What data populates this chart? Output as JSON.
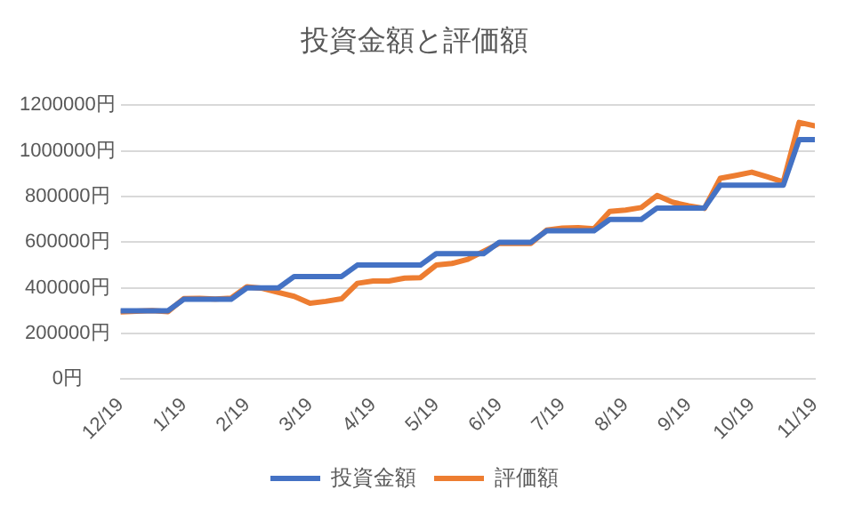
{
  "chart_data": {
    "type": "line",
    "title": "投資金額と評価額",
    "categories": [
      "12/19",
      null,
      null,
      null,
      "1/19",
      null,
      null,
      null,
      "2/19",
      null,
      null,
      null,
      "3/19",
      null,
      null,
      null,
      "4/19",
      null,
      null,
      null,
      "5/19",
      null,
      null,
      null,
      "6/19",
      null,
      null,
      null,
      "7/19",
      null,
      null,
      null,
      "8/19",
      null,
      null,
      null,
      "9/19",
      null,
      null,
      null,
      "10/19",
      null,
      null,
      null,
      "11/19"
    ],
    "series": [
      {
        "name": "投資金額",
        "color": "#4472c4",
        "values": [
          300000,
          300000,
          300000,
          300000,
          350000,
          350000,
          350000,
          350000,
          400000,
          400000,
          400000,
          450000,
          450000,
          450000,
          450000,
          500000,
          500000,
          500000,
          500000,
          500000,
          550000,
          550000,
          550000,
          550000,
          600000,
          600000,
          600000,
          650000,
          650000,
          650000,
          650000,
          700000,
          700000,
          700000,
          750000,
          750000,
          750000,
          750000,
          850000,
          850000,
          850000,
          850000,
          850000,
          1050000,
          1050000
        ]
      },
      {
        "name": "評価額",
        "color": "#ed7d31",
        "values": [
          295000,
          298000,
          301000,
          296000,
          353000,
          354000,
          351000,
          355000,
          405000,
          398000,
          380000,
          363000,
          333000,
          341000,
          352000,
          420000,
          430000,
          430000,
          443000,
          445000,
          500000,
          507000,
          525000,
          560000,
          595000,
          595000,
          595000,
          653000,
          662000,
          664000,
          659000,
          735000,
          741000,
          752000,
          805000,
          775000,
          760000,
          748000,
          880000,
          893000,
          907000,
          886000,
          864000,
          1125000,
          1110000
        ]
      }
    ],
    "ylim": [
      0,
      1200000
    ],
    "yticks": [
      {
        "value": 0,
        "label": "0円"
      },
      {
        "value": 200000,
        "label": "200000円"
      },
      {
        "value": 400000,
        "label": "400000円"
      },
      {
        "value": 600000,
        "label": "600000円"
      },
      {
        "value": 800000,
        "label": "800000円"
      },
      {
        "value": 1000000,
        "label": "1000000円"
      },
      {
        "value": 1200000,
        "label": "1200000円"
      }
    ],
    "grid": "y",
    "legend": "bottom",
    "marker": "none",
    "line_style": "solid"
  }
}
